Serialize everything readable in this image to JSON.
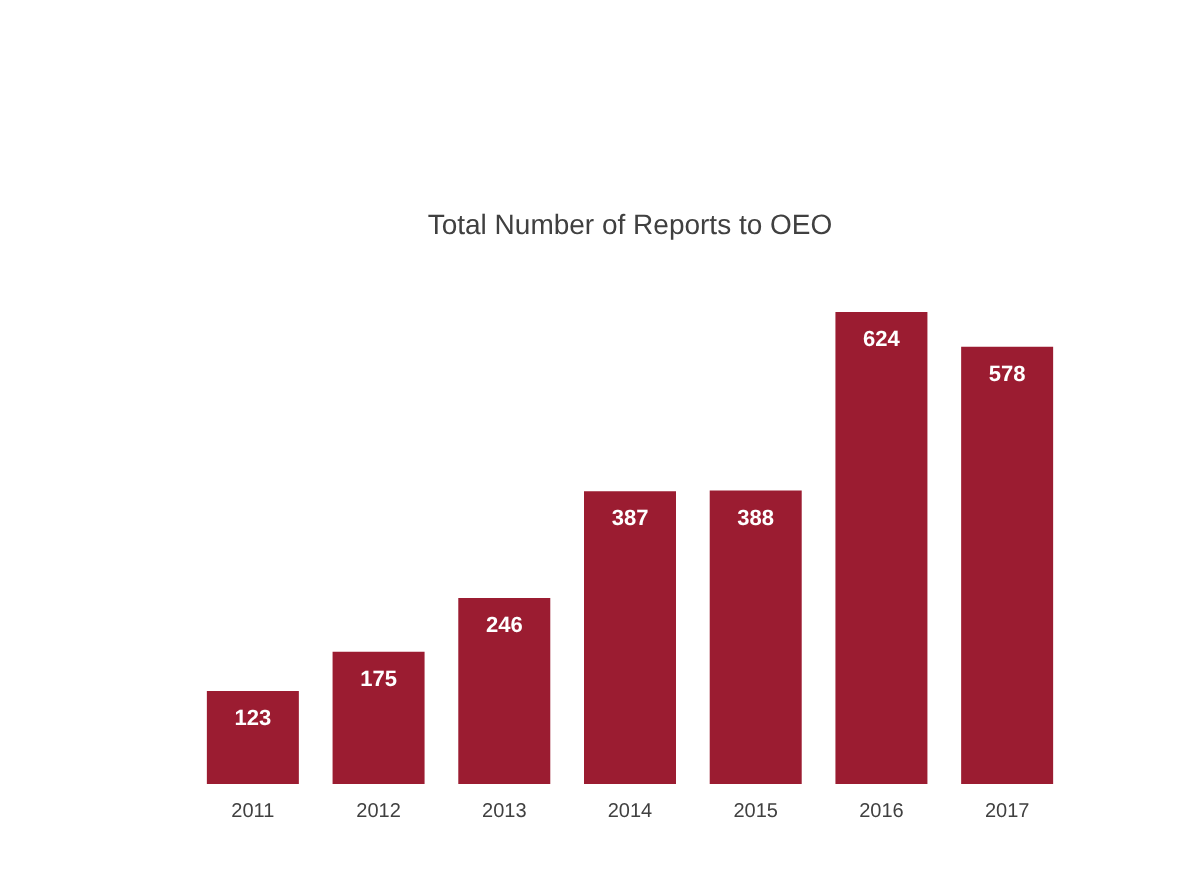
{
  "chart_data": {
    "type": "bar",
    "title": "Total Number of Reports to OEO",
    "categories": [
      "2011",
      "2012",
      "2013",
      "2014",
      "2015",
      "2016",
      "2017"
    ],
    "values": [
      123,
      175,
      246,
      387,
      388,
      624,
      578
    ],
    "color": "#9b1c31",
    "data_labels": true
  }
}
